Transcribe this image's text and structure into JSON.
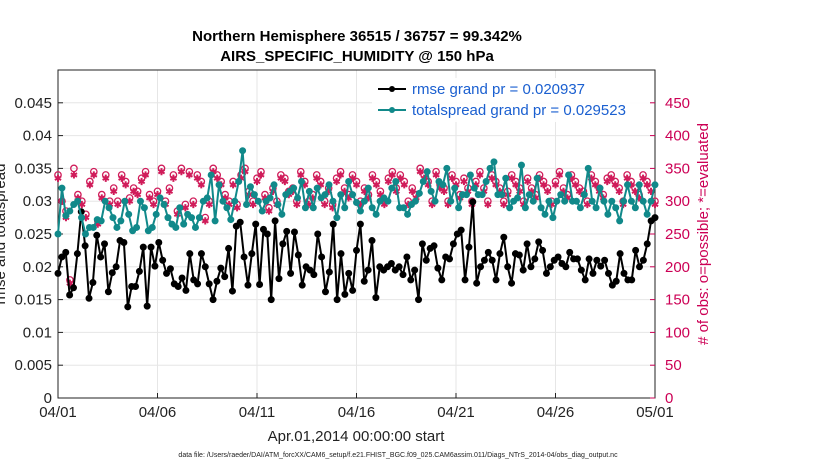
{
  "chart_data": {
    "type": "line",
    "title": "Northern Hemisphere 36515 / 36757 = 99.342%",
    "subtitle": "AIRS_SPECIFIC_HUMIDITY @ 150 hPa",
    "xlabel": "Apr.01,2014 00:00:00 start",
    "ylabel": "rmse and totalspread",
    "y2label": "# of obs: o=possible; *=evaluated",
    "footnote": "data file: /Users/raeder/DAI/ATM_forcXX/CAM6_setup/f.e21.FHIST_BGC.f09_025.CAM6assim.011/Diags_NTrS_2014-04/obs_diag_output.nc",
    "xlim": [
      0,
      30
    ],
    "ylim": [
      0,
      0.05
    ],
    "y2lim": [
      0,
      500
    ],
    "x_ticks": [
      0,
      5,
      10,
      15,
      20,
      25,
      30
    ],
    "x_tick_labels": [
      "04/01",
      "04/06",
      "04/11",
      "04/16",
      "04/21",
      "04/26",
      "05/01"
    ],
    "y_ticks": [
      0,
      0.005,
      0.01,
      0.015,
      0.02,
      0.025,
      0.03,
      0.035,
      0.04,
      0.045
    ],
    "y_tick_labels": [
      "0",
      "0.005",
      "0.01",
      "0.015",
      "0.02",
      "0.025",
      "0.03",
      "0.035",
      "0.04",
      "0.045"
    ],
    "y2_ticks": [
      0,
      50,
      100,
      150,
      200,
      250,
      300,
      350,
      400,
      450
    ],
    "y2_tick_labels": [
      "0",
      "50",
      "100",
      "150",
      "200",
      "250",
      "300",
      "350",
      "400",
      "450"
    ],
    "grid": true,
    "legend_position": "top-right",
    "series": [
      {
        "name": "rmse grand pr = 0.020937",
        "color": "#000000",
        "axis": "left",
        "values": [
          0.019,
          0.0215,
          0.0222,
          0.0157,
          0.0168,
          0.022,
          0.0284,
          0.0232,
          0.0152,
          0.0176,
          0.0248,
          0.0215,
          0.0235,
          0.0162,
          0.0191,
          0.02,
          0.024,
          0.0237,
          0.0139,
          0.017,
          0.017,
          0.0193,
          0.023,
          0.014,
          0.023,
          0.0201,
          0.0237,
          0.021,
          0.019,
          0.0197,
          0.0174,
          0.017,
          0.0183,
          0.0164,
          0.022,
          0.018,
          0.0174,
          0.022,
          0.02,
          0.0174,
          0.015,
          0.0178,
          0.0198,
          0.0185,
          0.0228,
          0.0163,
          0.0262,
          0.0268,
          0.0215,
          0.0172,
          0.022,
          0.0265,
          0.0173,
          0.0257,
          0.025,
          0.015,
          0.027,
          0.0182,
          0.0235,
          0.0254,
          0.019,
          0.0253,
          0.0218,
          0.0172,
          0.02,
          0.0195,
          0.0188,
          0.025,
          0.0215,
          0.0162,
          0.0192,
          0.0265,
          0.015,
          0.022,
          0.0158,
          0.019,
          0.0164,
          0.0225,
          0.0265,
          0.0178,
          0.0195,
          0.024,
          0.0153,
          0.02,
          0.0195,
          0.02,
          0.0205,
          0.0195,
          0.02,
          0.0188,
          0.0215,
          0.018,
          0.0195,
          0.015,
          0.0235,
          0.021,
          0.0228,
          0.0232,
          0.0198,
          0.018,
          0.0215,
          0.0212,
          0.0235,
          0.025,
          0.0256,
          0.018,
          0.023,
          0.0299,
          0.0175,
          0.02,
          0.021,
          0.0222,
          0.021,
          0.018,
          0.022,
          0.0245,
          0.02,
          0.0175,
          0.022,
          0.0218,
          0.0195,
          0.0235,
          0.02,
          0.0212,
          0.0238,
          0.0225,
          0.019,
          0.02,
          0.021,
          0.0215,
          0.0205,
          0.02,
          0.0222,
          0.0212,
          0.0212,
          0.0195,
          0.018,
          0.0212,
          0.019,
          0.021,
          0.0201,
          0.021,
          0.019,
          0.0172,
          0.0178,
          0.022,
          0.019,
          0.018,
          0.018,
          0.0225,
          0.02,
          0.021,
          0.0235,
          0.027,
          0.0275
        ]
      },
      {
        "name": "totalspread grand pr = 0.029523",
        "color": "#11898a",
        "axis": "left",
        "values": [
          0.025,
          0.032,
          0.0278,
          0.0285,
          0.0295,
          0.03,
          0.0275,
          0.025,
          0.026,
          0.026,
          0.0272,
          0.027,
          0.03,
          0.029,
          0.0275,
          0.026,
          0.027,
          0.03,
          0.028,
          0.0255,
          0.026,
          0.03,
          0.029,
          0.0255,
          0.026,
          0.028,
          0.0305,
          0.0295,
          0.0275,
          0.0265,
          0.026,
          0.029,
          0.0265,
          0.028,
          0.0275,
          0.026,
          0.0275,
          0.03,
          0.0305,
          0.034,
          0.027,
          0.0325,
          0.03,
          0.029,
          0.0272,
          0.03,
          0.033,
          0.0377,
          0.0295,
          0.0322,
          0.031,
          0.03,
          0.0285,
          0.03,
          0.0305,
          0.0325,
          0.0295,
          0.028,
          0.031,
          0.0315,
          0.032,
          0.0305,
          0.033,
          0.029,
          0.0315,
          0.029,
          0.032,
          0.0305,
          0.031,
          0.0325,
          0.03,
          0.0275,
          0.031,
          0.029,
          0.033,
          0.031,
          0.0298,
          0.0285,
          0.03,
          0.032,
          0.029,
          0.028,
          0.03,
          0.0305,
          0.03,
          0.032,
          0.033,
          0.029,
          0.029,
          0.028,
          0.0295,
          0.03,
          0.0312,
          0.033,
          0.0345,
          0.0315,
          0.03,
          0.033,
          0.0325,
          0.035,
          0.03,
          0.032,
          0.029,
          0.031,
          0.031,
          0.034,
          0.032,
          0.031,
          0.031,
          0.033,
          0.035,
          0.036,
          0.031,
          0.031,
          0.0335,
          0.029,
          0.03,
          0.0305,
          0.0355,
          0.029,
          0.031,
          0.03,
          0.0335,
          0.029,
          0.028,
          0.03,
          0.0275,
          0.03,
          0.031,
          0.03,
          0.034,
          0.03,
          0.03,
          0.029,
          0.031,
          0.035,
          0.03,
          0.029,
          0.032,
          0.03,
          0.028,
          0.03,
          0.029,
          0.027,
          0.03,
          0.0325,
          0.03,
          0.029,
          0.0325,
          0.03,
          0.028,
          0.03,
          0.0325
        ]
      },
      {
        "name": "possible",
        "color": "#d01c5a",
        "axis": "right",
        "marker": "circle",
        "values": [
          340,
          300,
          285,
          180,
          350,
          310,
          300,
          280,
          330,
          345,
          270,
          310,
          340,
          300,
          320,
          300,
          340,
          330,
          305,
          320,
          315,
          335,
          345,
          310,
          300,
          315,
          350,
          300,
          320,
          340,
          285,
          350,
          295,
          345,
          300,
          340,
          330,
          275,
          300,
          350,
          340,
          330,
          310,
          300,
          330,
          295,
          340,
          350,
          315,
          300,
          335,
          345,
          310,
          290,
          320,
          300,
          340,
          335,
          315,
          320,
          300,
          345,
          330,
          300,
          310,
          340,
          330,
          300,
          320,
          295,
          335,
          345,
          320,
          310,
          340,
          330,
          300,
          320,
          310,
          340,
          330,
          315,
          300,
          335,
          345,
          320,
          340,
          330,
          300,
          320,
          310,
          350,
          340,
          330,
          300,
          345,
          325,
          320,
          300,
          340,
          330,
          310,
          335,
          320,
          300,
          330,
          345,
          320,
          300,
          340,
          330,
          320,
          300,
          315,
          340,
          330,
          320,
          300,
          335,
          320,
          310,
          340,
          330,
          320,
          300,
          330,
          345,
          320,
          310,
          340,
          330,
          320,
          315,
          300,
          340,
          330,
          320,
          310,
          335,
          340,
          330,
          320,
          300,
          340,
          330,
          320,
          310,
          340,
          330,
          320,
          300
        ]
      },
      {
        "name": "evaluated",
        "color": "#d01c5a",
        "axis": "right",
        "marker": "star",
        "values": [
          335,
          300,
          275,
          175,
          340,
          305,
          295,
          275,
          325,
          340,
          265,
          305,
          335,
          295,
          315,
          295,
          335,
          325,
          300,
          315,
          310,
          330,
          340,
          305,
          295,
          310,
          345,
          295,
          315,
          335,
          280,
          345,
          290,
          340,
          295,
          335,
          325,
          270,
          295,
          345,
          335,
          325,
          305,
          295,
          325,
          290,
          335,
          345,
          310,
          295,
          330,
          340,
          305,
          285,
          315,
          295,
          335,
          330,
          310,
          315,
          295,
          340,
          325,
          295,
          305,
          335,
          325,
          295,
          315,
          290,
          330,
          340,
          315,
          305,
          335,
          325,
          295,
          315,
          305,
          335,
          325,
          310,
          295,
          330,
          340,
          315,
          335,
          325,
          295,
          315,
          305,
          345,
          335,
          325,
          295,
          340,
          320,
          315,
          295,
          335,
          325,
          305,
          330,
          315,
          295,
          325,
          340,
          315,
          295,
          335,
          325,
          315,
          295,
          310,
          335,
          325,
          315,
          295,
          330,
          315,
          305,
          335,
          325,
          315,
          295,
          325,
          340,
          315,
          305,
          335,
          325,
          315,
          310,
          295,
          335,
          325,
          315,
          305,
          330,
          335,
          325,
          315,
          295,
          335,
          325,
          315,
          305,
          335,
          325,
          315,
          295
        ]
      }
    ]
  }
}
